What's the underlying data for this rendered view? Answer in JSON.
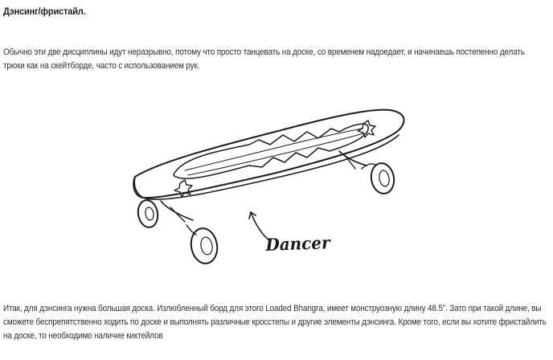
{
  "article": {
    "title": "Дэнсинг/фристайл.",
    "intro": "Обычно эти две дисциплины идут неразрывно, потому что просто танцевать на доске, со временем надоедает, и начинаешь постепенно делать трюки как на скейтборде, часто с использованием рук.",
    "figure": {
      "subject": "longboard-drawing",
      "caption": "Dancer"
    },
    "body": "Итак, для дэнсинга нужна большая доска. Излюбленный борд для этого Loaded Bhangra, имеет монструозную длину 48.5\". Зато при такой длине, вы сможете беспрепятственно ходить по доске и выполнять различные кросстепы и другие элементы дэнсинга. Кроме того, если вы хотите фристайлить на доске, то необходимо наличие киктейлов"
  }
}
